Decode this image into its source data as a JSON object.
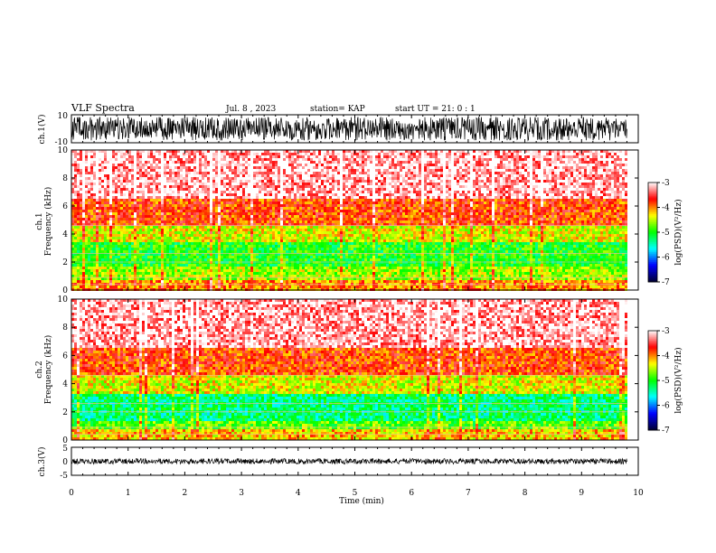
{
  "header": {
    "title": "VLF Spectra",
    "date": "Jul. 8 , 2023",
    "station": "station= KAP",
    "start_ut": "start UT = 21: 0 : 1"
  },
  "chart_data": [
    {
      "type": "line",
      "panel": "ch1-waveform",
      "ylabel": "ch.1(V)",
      "ylim": [
        -10,
        10
      ],
      "y_ticks": [
        "10",
        "-10"
      ],
      "xlim": [
        0,
        10
      ],
      "note_series_extent_min": 9.8
    },
    {
      "type": "heatmap",
      "panel": "ch1-spectrogram",
      "ylabel_line1": "ch.1",
      "ylabel_line2": "Frequency (kHz)",
      "ylim": [
        0,
        10
      ],
      "y_ticks": [
        "0",
        "2",
        "4",
        "6",
        "8",
        "10"
      ],
      "xlim": [
        0,
        10
      ],
      "data_extent_min": 9.8,
      "bands_khz": [
        {
          "from": 0,
          "to": 0.8,
          "level": -4.0
        },
        {
          "from": 0.8,
          "to": 1.6,
          "level": -4.6
        },
        {
          "from": 1.6,
          "to": 3.4,
          "level": -5.0
        },
        {
          "from": 3.4,
          "to": 4.6,
          "level": -4.4
        },
        {
          "from": 4.6,
          "to": 6.5,
          "level": -3.8
        },
        {
          "from": 6.5,
          "to": 10,
          "level": -3.2
        }
      ],
      "colorbar": {
        "label": "log(PSD)(V²/Hz)",
        "min": -7,
        "max": -3,
        "ticks": [
          "-3",
          "-4",
          "-5",
          "-6",
          "-7"
        ],
        "colors": [
          "#ffffff",
          "#ff0000",
          "#ffff00",
          "#00ff00",
          "#00ffff",
          "#0000ff",
          "#000030"
        ]
      }
    },
    {
      "type": "heatmap",
      "panel": "ch2-spectrogram",
      "ylabel_line1": "ch.2",
      "ylabel_line2": "Frequency (kHz)",
      "ylim": [
        0,
        10
      ],
      "y_ticks": [
        "0",
        "2",
        "4",
        "6",
        "8",
        "10"
      ],
      "xlim": [
        0,
        10
      ],
      "data_extent_min": 9.8,
      "bands_khz": [
        {
          "from": 0,
          "to": 0.7,
          "level": -4.2
        },
        {
          "from": 0.7,
          "to": 1.3,
          "level": -4.8
        },
        {
          "from": 1.3,
          "to": 3.3,
          "level": -5.3
        },
        {
          "from": 3.3,
          "to": 4.6,
          "level": -4.4
        },
        {
          "from": 4.6,
          "to": 6.5,
          "level": -3.8
        },
        {
          "from": 6.5,
          "to": 10,
          "level": -3.2
        }
      ],
      "colorbar": {
        "label": "log(PSD)(V²/Hz)",
        "min": -7,
        "max": -3,
        "ticks": [
          "-3",
          "-4",
          "-5",
          "-6",
          "-7"
        ],
        "colors": [
          "#ffffff",
          "#ff0000",
          "#ffff00",
          "#00ff00",
          "#00ffff",
          "#0000ff",
          "#000030"
        ]
      }
    },
    {
      "type": "line",
      "panel": "ch3-waveform",
      "ylabel": "ch.3(V)",
      "ylim": [
        -5,
        5
      ],
      "y_ticks": [
        "5",
        "0",
        "-5"
      ],
      "xlim": [
        0,
        10
      ],
      "xlabel": "Time (min)",
      "x_ticks": [
        "0",
        "1",
        "2",
        "3",
        "4",
        "5",
        "6",
        "7",
        "8",
        "9",
        "10"
      ],
      "note_series_extent_min": 9.8
    }
  ]
}
